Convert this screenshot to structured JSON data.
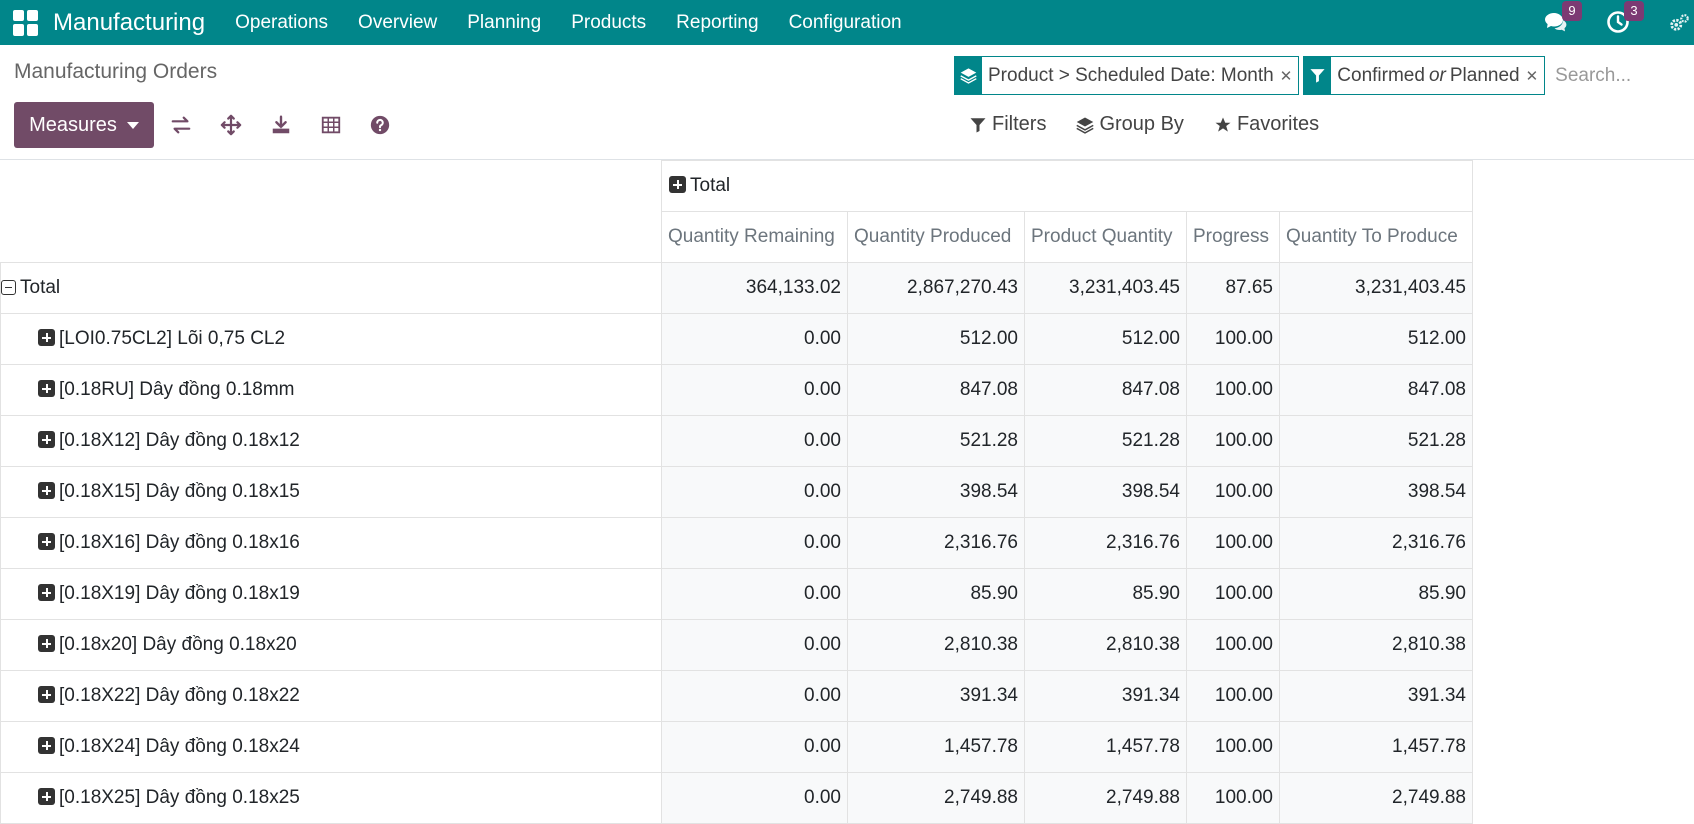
{
  "navbar": {
    "app_name": "Manufacturing",
    "menu": [
      "Operations",
      "Overview",
      "Planning",
      "Products",
      "Reporting",
      "Configuration"
    ],
    "messages_count": "9",
    "activities_count": "3"
  },
  "breadcrumb": "Manufacturing Orders",
  "search": {
    "facets": [
      {
        "icon": "layers-icon",
        "value": "Product > Scheduled Date: Month"
      },
      {
        "icon": "filter-icon",
        "value_a": "Confirmed",
        "or": "or",
        "value_b": "Planned"
      }
    ],
    "placeholder": "Search..."
  },
  "toolbar": {
    "measures_label": "Measures",
    "filters_label": "Filters",
    "group_by_label": "Group By",
    "favorites_label": "Favorites"
  },
  "pivot": {
    "col_group_label": "Total",
    "columns": [
      "Quantity Remaining",
      "Quantity Produced",
      "Product Quantity",
      "Progress",
      "Quantity To Produce"
    ],
    "total_row": {
      "label": "Total",
      "values": [
        "364,133.02",
        "2,867,270.43",
        "3,231,403.45",
        "87.65",
        "3,231,403.45"
      ]
    },
    "rows": [
      {
        "label": "[LOI0.75CL2] Lõi 0,75 CL2",
        "values": [
          "0.00",
          "512.00",
          "512.00",
          "100.00",
          "512.00"
        ]
      },
      {
        "label": "[0.18RU] Dây đồng 0.18mm",
        "values": [
          "0.00",
          "847.08",
          "847.08",
          "100.00",
          "847.08"
        ]
      },
      {
        "label": "[0.18X12] Dây đồng 0.18x12",
        "values": [
          "0.00",
          "521.28",
          "521.28",
          "100.00",
          "521.28"
        ]
      },
      {
        "label": "[0.18X15] Dây đồng 0.18x15",
        "values": [
          "0.00",
          "398.54",
          "398.54",
          "100.00",
          "398.54"
        ]
      },
      {
        "label": "[0.18X16] Dây đồng 0.18x16",
        "values": [
          "0.00",
          "2,316.76",
          "2,316.76",
          "100.00",
          "2,316.76"
        ]
      },
      {
        "label": "[0.18X19] Dây đồng 0.18x19",
        "values": [
          "0.00",
          "85.90",
          "85.90",
          "100.00",
          "85.90"
        ]
      },
      {
        "label": "[0.18x20] Dây đồng 0.18x20",
        "values": [
          "0.00",
          "2,810.38",
          "2,810.38",
          "100.00",
          "2,810.38"
        ]
      },
      {
        "label": "[0.18X22] Dây đồng 0.18x22",
        "values": [
          "0.00",
          "391.34",
          "391.34",
          "100.00",
          "391.34"
        ]
      },
      {
        "label": "[0.18X24] Dây đồng 0.18x24",
        "values": [
          "0.00",
          "1,457.78",
          "1,457.78",
          "100.00",
          "1,457.78"
        ]
      },
      {
        "label": "[0.18X25] Dây đồng 0.18x25",
        "values": [
          "0.00",
          "2,749.88",
          "2,749.88",
          "100.00",
          "2,749.88"
        ]
      }
    ]
  }
}
